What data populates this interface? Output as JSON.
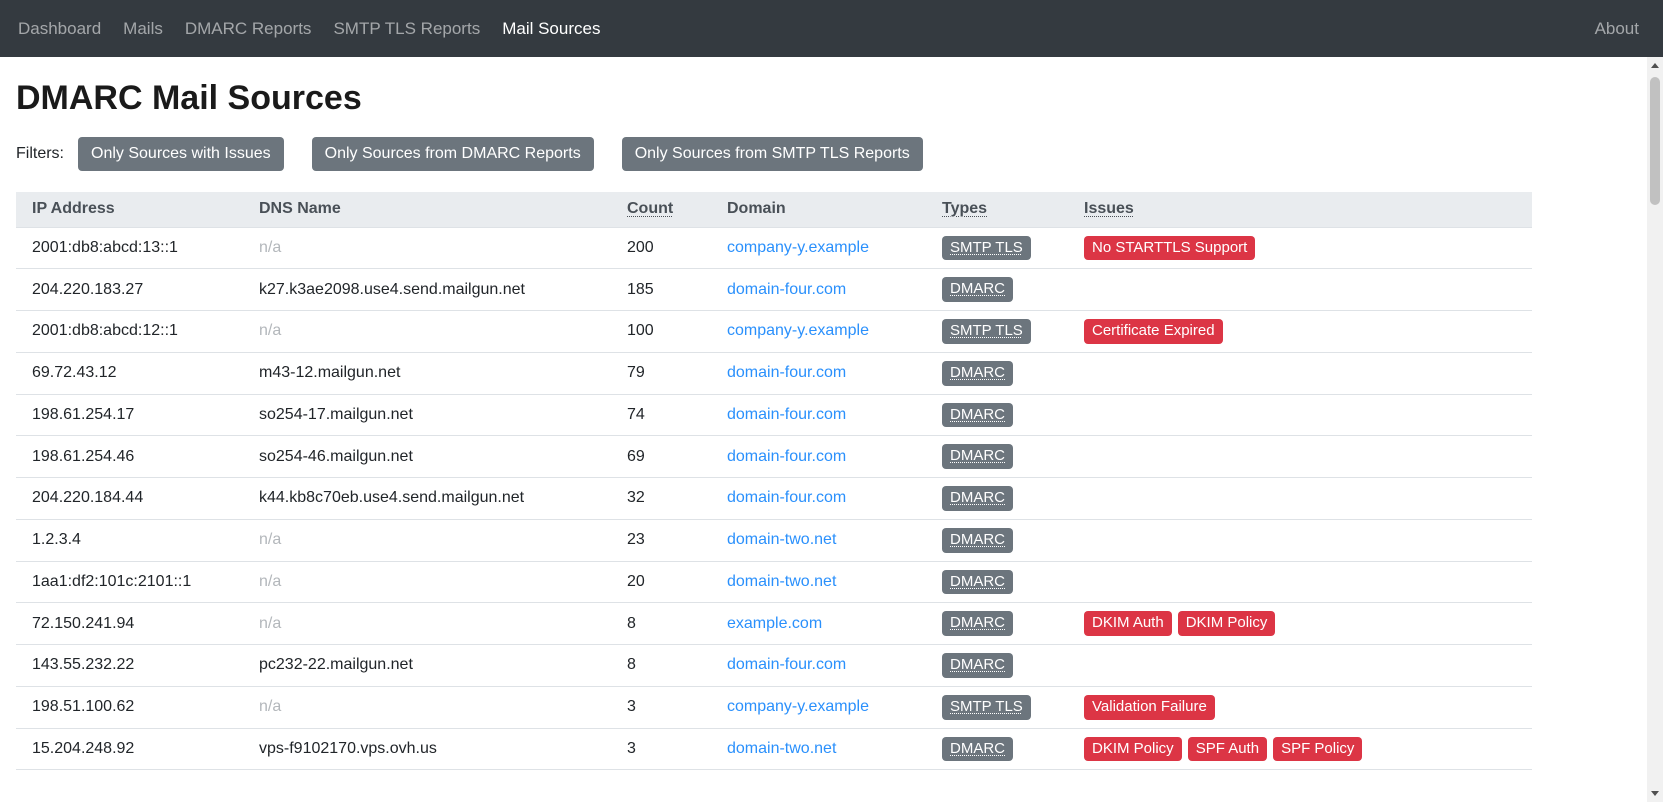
{
  "navbar": {
    "items": [
      {
        "label": "Dashboard",
        "active": false
      },
      {
        "label": "Mails",
        "active": false
      },
      {
        "label": "DMARC Reports",
        "active": false
      },
      {
        "label": "SMTP TLS Reports",
        "active": false
      },
      {
        "label": "Mail Sources",
        "active": true
      }
    ],
    "right_item": {
      "label": "About",
      "active": false
    }
  },
  "page": {
    "title": "DMARC Mail Sources",
    "filters_label": "Filters:"
  },
  "filters": [
    "Only Sources with Issues",
    "Only Sources from DMARC Reports",
    "Only Sources from SMTP TLS Reports"
  ],
  "table": {
    "columns": [
      {
        "label": "IP Address",
        "sortable": false
      },
      {
        "label": "DNS Name",
        "sortable": false
      },
      {
        "label": "Count",
        "sortable": true
      },
      {
        "label": "Domain",
        "sortable": false
      },
      {
        "label": "Types",
        "sortable": true
      },
      {
        "label": "Issues",
        "sortable": true
      }
    ],
    "rows": [
      {
        "ip": "2001:db8:abcd:13::1",
        "dns": "n/a",
        "count": "200",
        "domain": "company-y.example",
        "types": [
          "SMTP TLS"
        ],
        "issues": [
          "No STARTTLS Support"
        ]
      },
      {
        "ip": "204.220.183.27",
        "dns": "k27.k3ae2098.use4.send.mailgun.net",
        "count": "185",
        "domain": "domain-four.com",
        "types": [
          "DMARC"
        ],
        "issues": []
      },
      {
        "ip": "2001:db8:abcd:12::1",
        "dns": "n/a",
        "count": "100",
        "domain": "company-y.example",
        "types": [
          "SMTP TLS"
        ],
        "issues": [
          "Certificate Expired"
        ]
      },
      {
        "ip": "69.72.43.12",
        "dns": "m43-12.mailgun.net",
        "count": "79",
        "domain": "domain-four.com",
        "types": [
          "DMARC"
        ],
        "issues": []
      },
      {
        "ip": "198.61.254.17",
        "dns": "so254-17.mailgun.net",
        "count": "74",
        "domain": "domain-four.com",
        "types": [
          "DMARC"
        ],
        "issues": []
      },
      {
        "ip": "198.61.254.46",
        "dns": "so254-46.mailgun.net",
        "count": "69",
        "domain": "domain-four.com",
        "types": [
          "DMARC"
        ],
        "issues": []
      },
      {
        "ip": "204.220.184.44",
        "dns": "k44.kb8c70eb.use4.send.mailgun.net",
        "count": "32",
        "domain": "domain-four.com",
        "types": [
          "DMARC"
        ],
        "issues": []
      },
      {
        "ip": "1.2.3.4",
        "dns": "n/a",
        "count": "23",
        "domain": "domain-two.net",
        "types": [
          "DMARC"
        ],
        "issues": []
      },
      {
        "ip": "1aa1:df2:101c:2101::1",
        "dns": "n/a",
        "count": "20",
        "domain": "domain-two.net",
        "types": [
          "DMARC"
        ],
        "issues": []
      },
      {
        "ip": "72.150.241.94",
        "dns": "n/a",
        "count": "8",
        "domain": "example.com",
        "types": [
          "DMARC"
        ],
        "issues": [
          "DKIM Auth",
          "DKIM Policy"
        ]
      },
      {
        "ip": "143.55.232.22",
        "dns": "pc232-22.mailgun.net",
        "count": "8",
        "domain": "domain-four.com",
        "types": [
          "DMARC"
        ],
        "issues": []
      },
      {
        "ip": "198.51.100.62",
        "dns": "n/a",
        "count": "3",
        "domain": "company-y.example",
        "types": [
          "SMTP TLS"
        ],
        "issues": [
          "Validation Failure"
        ]
      },
      {
        "ip": "15.204.248.92",
        "dns": "vps-f9102170.vps.ovh.us",
        "count": "3",
        "domain": "domain-two.net",
        "types": [
          "DMARC"
        ],
        "issues": [
          "DKIM Policy",
          "SPF Auth",
          "SPF Policy"
        ]
      }
    ]
  },
  "colors": {
    "navbar_bg": "#343a40",
    "nav_link_inactive": "#8f959b",
    "nav_link_active": "#ffffff",
    "button_gray": "#6c757d",
    "badge_type_gray": "#6c757d",
    "badge_issue_red": "#dc3545",
    "link_blue": "#2a90fc",
    "table_header_bg": "#e9ecef",
    "row_border": "#dee2e6",
    "na_text": "#b3b7bb"
  }
}
